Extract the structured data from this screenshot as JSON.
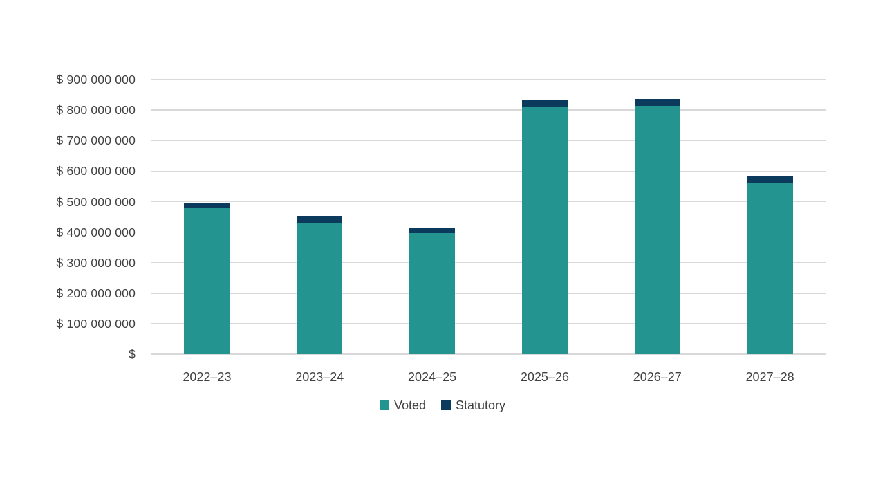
{
  "chart_data": {
    "type": "bar",
    "stacked": true,
    "title": "",
    "xlabel": "",
    "ylabel": "",
    "categories": [
      "2022–23",
      "2023–24",
      "2024–25",
      "2025–26",
      "2026–27",
      "2027–28"
    ],
    "series": [
      {
        "name": "Voted",
        "color": "#23948F",
        "values": [
          480000000,
          431000000,
          397000000,
          812000000,
          814000000,
          563000000
        ]
      },
      {
        "name": "Statutory",
        "color": "#0C3A5C",
        "values": [
          17000000,
          20000000,
          18000000,
          22000000,
          23000000,
          20000000
        ]
      }
    ],
    "ylim": [
      0,
      900000000
    ],
    "ytick_step": 100000000,
    "ytick_labels": [
      "$",
      "$ 100 000 000",
      "$ 200 000 000",
      "$ 300 000 000",
      "$ 400 000 000",
      "$ 500 000 000",
      "$ 600 000 000",
      "$ 700 000 000",
      "$ 800 000 000",
      "$ 900 000 000"
    ],
    "grid": true,
    "gridline_color": "#D9D9D9",
    "axis_text_color": "#404040",
    "background": "#FFFFFF",
    "legend_position": "bottom-center",
    "legend": [
      "Voted",
      "Statutory"
    ]
  }
}
